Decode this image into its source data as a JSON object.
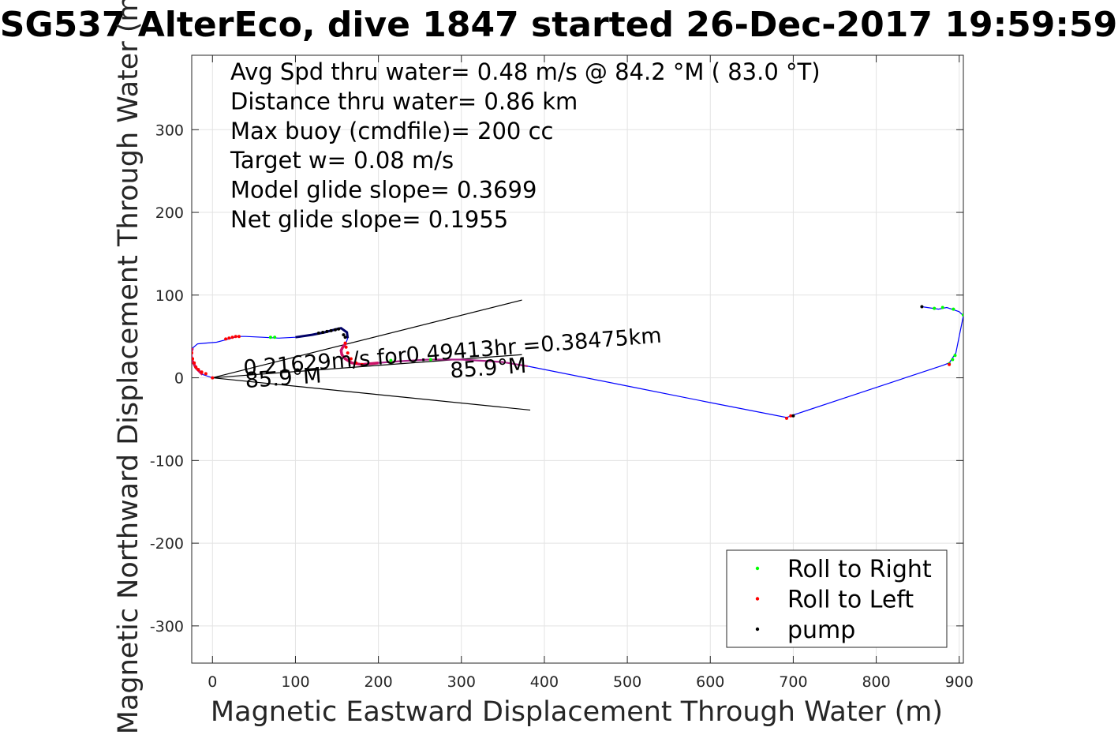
{
  "chart_data": {
    "type": "scatter",
    "title": "SG537 AlterEco, dive 1847 started 26-Dec-2017 19:59:59",
    "xlabel": "Magnetic Eastward Displacement Through Water (m)",
    "ylabel": "Magnetic Northward Displacement Through Water (m)",
    "xlim": [
      -25,
      905
    ],
    "ylim": [
      -345,
      390
    ],
    "xticks": [
      0,
      100,
      200,
      300,
      400,
      500,
      600,
      700,
      800,
      900
    ],
    "yticks": [
      -300,
      -200,
      -100,
      0,
      100,
      200,
      300
    ],
    "grid": true,
    "stats_lines": [
      "Avg Spd thru water=  0.48 m/s @  84.2 °M ( 83.0 °T)",
      "Distance thru water=  0.86 km",
      "Max buoy (cmdfile)= 200 cc",
      "Target w= 0.08 m/s",
      "Model glide slope= 0.3699",
      "Net glide slope= 0.1955"
    ],
    "annotations": {
      "current_text": "0.21629m/s for0.49413hr =0.38475km",
      "heading_label_1": "85.9°M",
      "heading_label_2": "85.9°M"
    },
    "track": [
      [
        0,
        0
      ],
      [
        -12,
        4
      ],
      [
        -20,
        12
      ],
      [
        -25,
        22
      ],
      [
        -26,
        30
      ],
      [
        -24,
        36
      ],
      [
        -18,
        41
      ],
      [
        -8,
        42
      ],
      [
        5,
        43
      ],
      [
        20,
        47
      ],
      [
        30,
        50
      ],
      [
        40,
        50
      ],
      [
        60,
        49
      ],
      [
        80,
        48
      ],
      [
        100,
        49
      ],
      [
        120,
        52
      ],
      [
        135,
        55
      ],
      [
        150,
        59
      ],
      [
        155,
        60
      ],
      [
        162,
        55
      ],
      [
        163,
        48
      ],
      [
        161,
        42
      ],
      [
        157,
        37
      ],
      [
        155,
        33
      ],
      [
        156,
        28
      ],
      [
        160,
        23
      ],
      [
        168,
        18
      ],
      [
        180,
        16
      ],
      [
        200,
        18
      ],
      [
        225,
        20
      ],
      [
        260,
        22
      ],
      [
        300,
        22
      ],
      [
        335,
        20
      ],
      [
        350,
        19
      ],
      [
        380,
        14
      ],
      [
        500,
        -10
      ],
      [
        600,
        -30
      ],
      [
        692,
        -48
      ],
      [
        700,
        -45
      ],
      [
        880,
        15
      ],
      [
        888,
        18
      ],
      [
        896,
        30
      ],
      [
        905,
        75
      ],
      [
        900,
        80
      ],
      [
        885,
        85
      ],
      [
        875,
        83
      ],
      [
        855,
        86
      ]
    ],
    "current_vector": {
      "x": [
        0,
        373
      ],
      "y": [
        0,
        28
      ]
    },
    "wedge_upper": {
      "x": [
        0,
        373
      ],
      "y": [
        0,
        94
      ]
    },
    "wedge_lower": {
      "x": [
        0,
        383
      ],
      "y": [
        0,
        -39
      ]
    },
    "series": [
      {
        "name": "Roll to Right",
        "color": "#00ff00",
        "marker": "point",
        "x": [
          70,
          75,
          215,
          263,
          870,
          880,
          893,
          905,
          888,
          892,
          895
        ],
        "y": [
          49,
          49,
          21,
          22,
          84,
          85,
          83,
          76,
          17,
          22,
          27
        ]
      },
      {
        "name": "Roll to Left",
        "color": "#ff0000",
        "marker": "point",
        "x": [
          -25,
          -24,
          -22,
          -20,
          -17,
          -13,
          -8,
          0,
          16,
          20,
          24,
          28,
          32,
          160,
          161,
          163,
          167,
          173,
          180,
          692,
          697,
          888
        ],
        "y": [
          30,
          23,
          18,
          13,
          10,
          7,
          5,
          0,
          47,
          48,
          49,
          50,
          50,
          42,
          37,
          30,
          23,
          18,
          16,
          -49,
          -46,
          16
        ]
      },
      {
        "name": "pump",
        "color": "#000000",
        "marker": "point",
        "x": [
          128,
          133,
          138,
          143,
          148,
          152,
          158,
          160,
          855,
          700
        ],
        "y": [
          54,
          55,
          56,
          57,
          58,
          59,
          52,
          49,
          86,
          -46
        ]
      }
    ],
    "trail_colors": {
      "track": "#0000ff",
      "left_roll_band": "#cc1166",
      "pump_band": "#000066"
    },
    "legend_position": "bottom-right"
  }
}
